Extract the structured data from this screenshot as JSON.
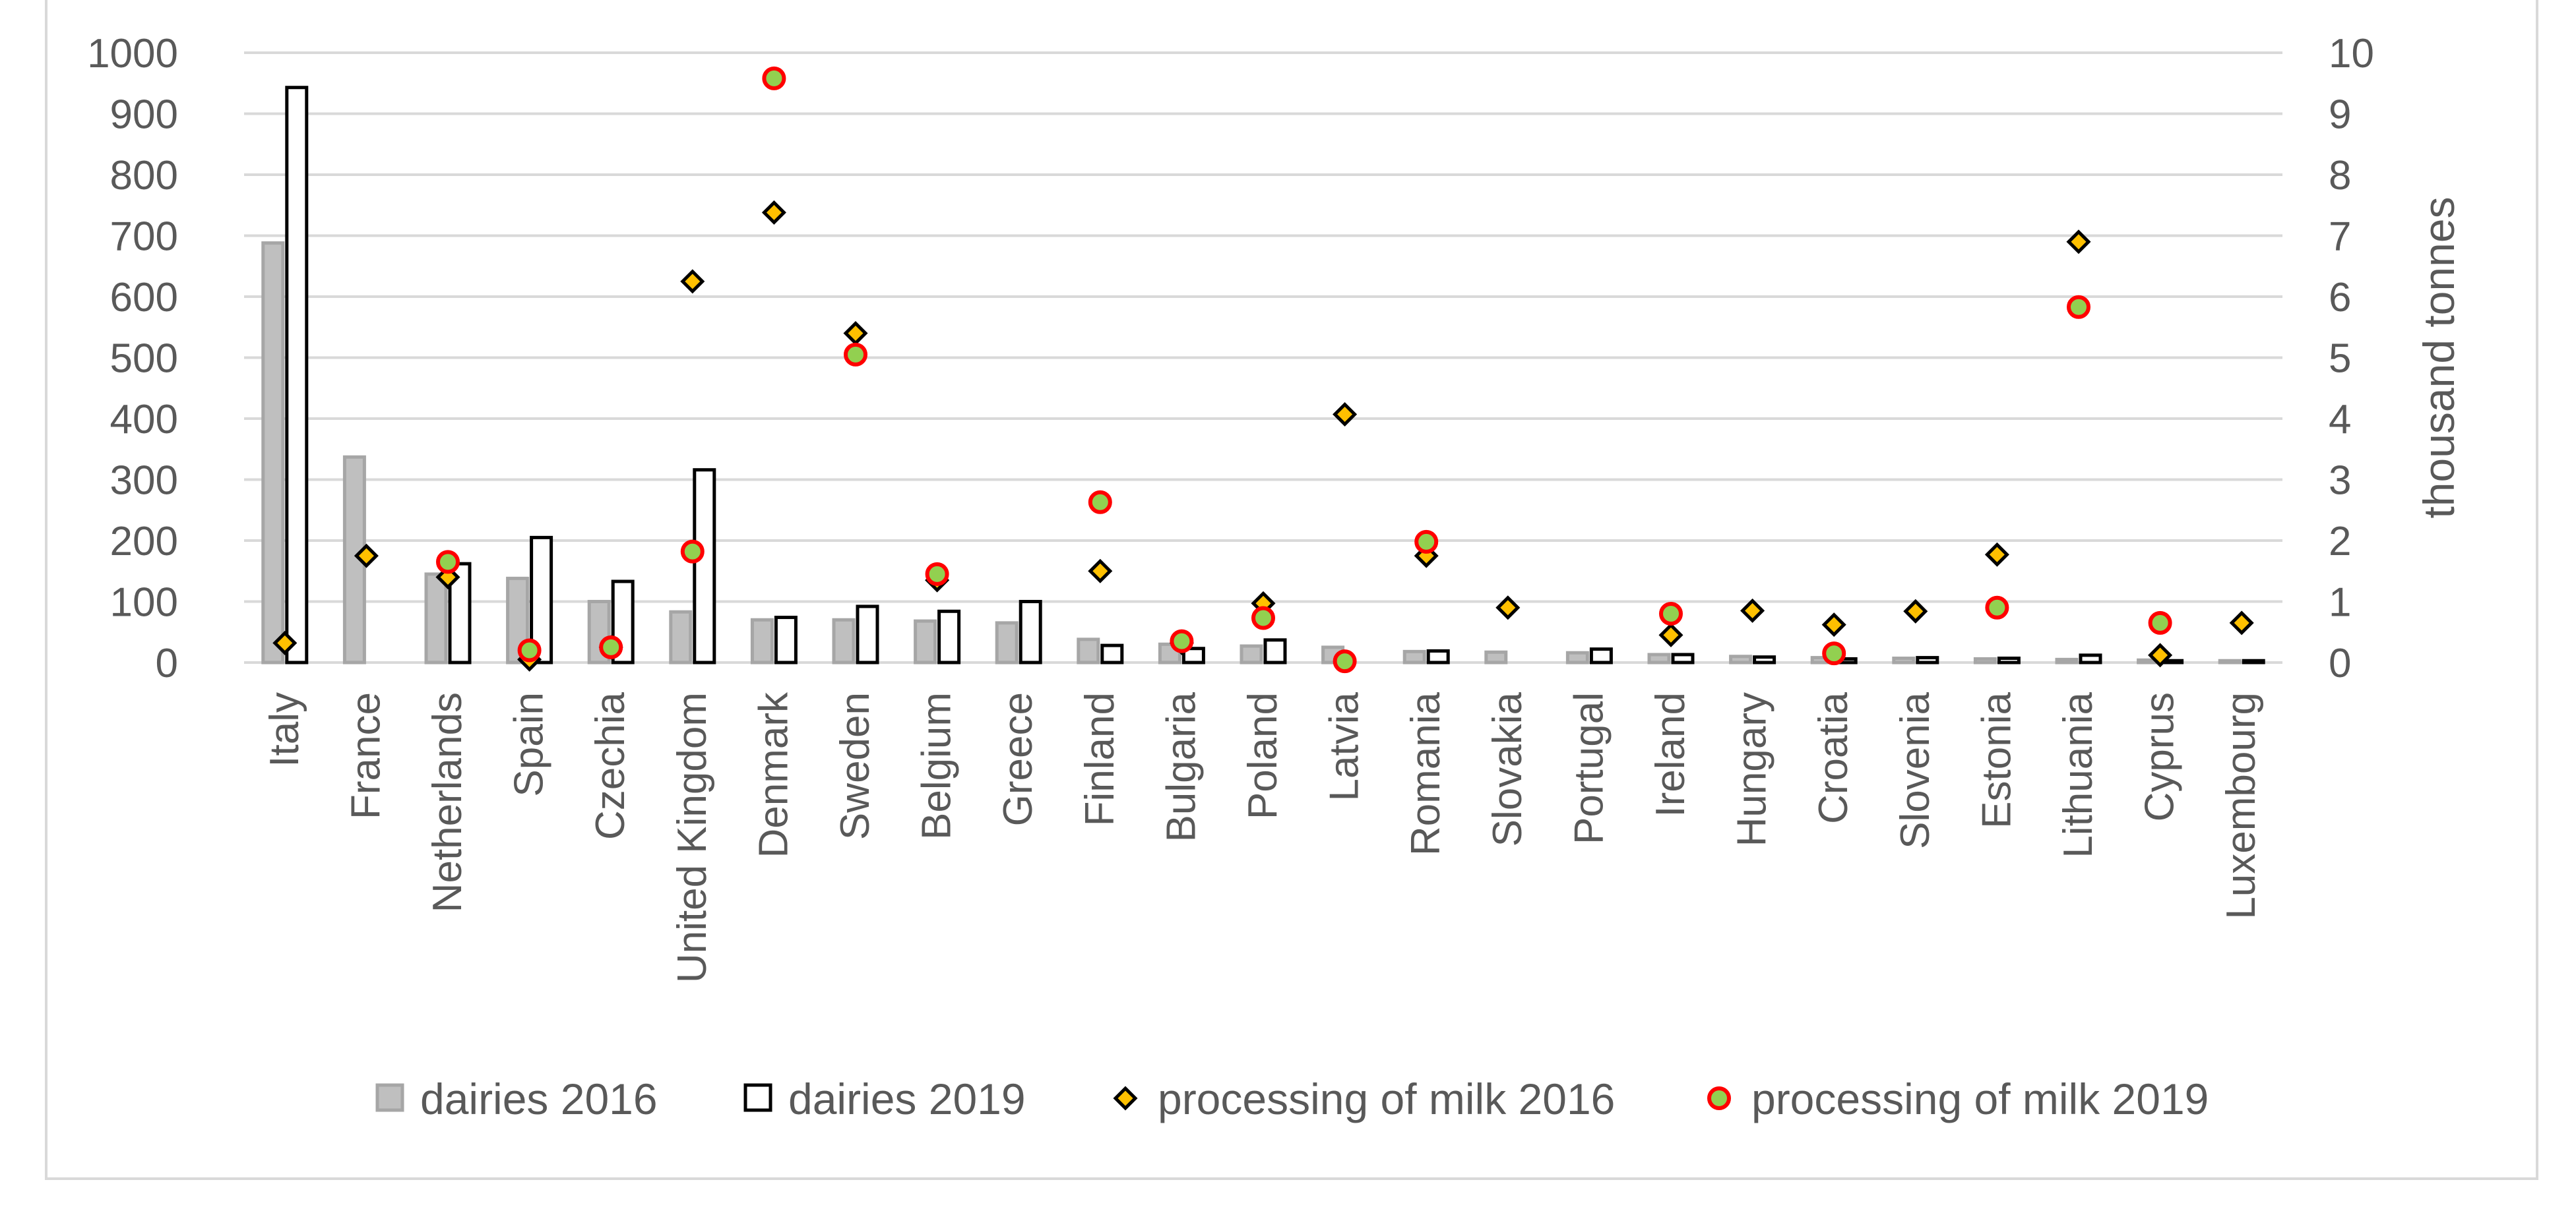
{
  "chart_data": {
    "type": "bar",
    "title": "",
    "xlabel": "",
    "ylabel": "",
    "y2label": "thousand tonnes",
    "ylim": [
      0,
      1000
    ],
    "y2lim": [
      0,
      10
    ],
    "yticks": [
      "0",
      "100",
      "200",
      "300",
      "400",
      "500",
      "600",
      "700",
      "800",
      "900",
      "1000"
    ],
    "y2ticks": [
      "0",
      "1",
      "2",
      "3",
      "4",
      "5",
      "6",
      "7",
      "8",
      "9",
      "10"
    ],
    "grid": true,
    "legend_position": "bottom",
    "categories": [
      "Italy",
      "France",
      "Netherlands",
      "Spain",
      "Czechia",
      "United Kingdom",
      "Denmark",
      "Sweden",
      "Belgium",
      "Greece",
      "Finland",
      "Bulgaria",
      "Poland",
      "Latvia",
      "Romania",
      "Slovakia",
      "Portugal",
      "Ireland",
      "Hungary",
      "Croatia",
      "Slovenia",
      "Estonia",
      "Lithuania",
      "Cyprus",
      "Luxembourg"
    ],
    "series": [
      {
        "name": "dairies 2016",
        "kind": "bar",
        "axis": "left",
        "color": "#bfbfbf",
        "stroke": "#a6a6a6",
        "values": [
          688,
          337,
          145,
          138,
          100,
          83,
          70,
          70,
          68,
          65,
          38,
          30,
          27,
          25,
          18,
          17,
          16,
          13,
          10,
          8,
          7,
          6,
          5,
          4,
          3
        ]
      },
      {
        "name": "dairies 2019",
        "kind": "bar",
        "axis": "left",
        "color": "#ffffff",
        "stroke": "#000000",
        "values": [
          943,
          null,
          162,
          205,
          133,
          316,
          74,
          92,
          84,
          100,
          28,
          23,
          37,
          null,
          19,
          null,
          22,
          13,
          9,
          6,
          8,
          7,
          12,
          3,
          3
        ]
      },
      {
        "name": "processing of milk 2016",
        "kind": "diamond",
        "axis": "right",
        "color": "#ffc000",
        "stroke": "#000000",
        "values": [
          0.32,
          1.75,
          1.4,
          0.05,
          0.25,
          6.25,
          7.38,
          5.4,
          1.35,
          null,
          1.5,
          0.32,
          0.97,
          4.07,
          1.75,
          0.9,
          null,
          0.45,
          0.85,
          0.62,
          0.84,
          1.77,
          6.9,
          0.12,
          0.65
        ]
      },
      {
        "name": "processing of milk 2019",
        "kind": "circle",
        "axis": "right",
        "color": "#92d050",
        "stroke": "#ff0000",
        "values": [
          null,
          null,
          1.65,
          0.2,
          0.25,
          1.82,
          9.58,
          5.05,
          1.45,
          null,
          2.63,
          0.35,
          0.73,
          0.02,
          1.98,
          null,
          null,
          0.8,
          null,
          0.15,
          null,
          0.9,
          5.83,
          0.65,
          null
        ]
      }
    ]
  }
}
